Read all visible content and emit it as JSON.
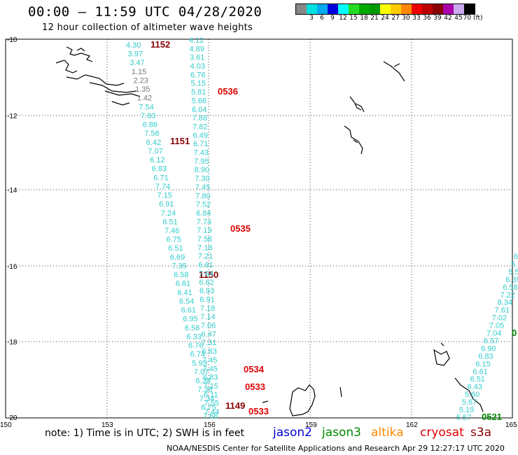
{
  "header": {
    "title": "00:00 – 11:59 UTC 04/28/2020",
    "subtitle": "12 hour collection of altimeter wave heights"
  },
  "colorbar": {
    "colors": [
      "#888888",
      "#00e0e0",
      "#00aaee",
      "#0000dd",
      "#00ffff",
      "#22dd22",
      "#00aa00",
      "#009900",
      "#ffff00",
      "#ffcc00",
      "#ff8800",
      "#ee0000",
      "#bb0000",
      "#880000",
      "#aa00aa",
      "#ccaaee",
      "#000000"
    ],
    "tick_labels": [
      "3",
      "6",
      "9",
      "12",
      "15",
      "18",
      "21",
      "24",
      "27",
      "30",
      "33",
      "36",
      "39",
      "42",
      "45",
      "70 (ft)"
    ]
  },
  "axes": {
    "lat_labels": [
      "-10",
      "-12",
      "-14",
      "-16",
      "-18",
      "-20"
    ],
    "lon_labels": [
      "150",
      "153",
      "156",
      "159",
      "162",
      "165"
    ]
  },
  "tracks": {
    "left_track_values": [
      "4.30",
      "3.97",
      "3.47",
      "1.15",
      "2.23",
      "1.35",
      "1.42",
      "7.54",
      "7.83",
      "6.86",
      "7.56",
      "6.42",
      "7.07",
      "6.12",
      "6.83",
      "6.71",
      "7.74",
      "7.15",
      "6.91",
      "7.24",
      "6.51",
      "7.46",
      "6.75",
      "6.51",
      "6.69",
      "7.35",
      "6.58",
      "6.81",
      "6.41",
      "6.54",
      "6.61",
      "6.95",
      "6.58",
      "6.33",
      "6.76",
      "6.74",
      "5.93",
      "7.07",
      "6.38",
      "7.38",
      "7.34",
      "6.75",
      "7.66"
    ],
    "left_track_colors": [
      "#33cccc",
      "#33cccc",
      "#33cccc",
      "#777777",
      "#777777",
      "#777777",
      "#777777",
      "#33cccc",
      "#33cccc",
      "#33cccc",
      "#33cccc",
      "#33cccc",
      "#33cccc",
      "#33cccc",
      "#33cccc",
      "#33cccc",
      "#33cccc",
      "#33cccc",
      "#33cccc",
      "#33cccc",
      "#33cccc",
      "#33cccc",
      "#33cccc",
      "#33cccc",
      "#33cccc",
      "#33cccc",
      "#33cccc",
      "#33cccc",
      "#33cccc",
      "#33cccc",
      "#33cccc",
      "#33cccc",
      "#33cccc",
      "#33cccc",
      "#33cccc",
      "#33cccc",
      "#33cccc",
      "#33cccc",
      "#33cccc",
      "#33cccc",
      "#33cccc",
      "#33cccc",
      "#33cccc"
    ],
    "right_track_values": [
      "4.12",
      "4.89",
      "3.61",
      "4.03",
      "6.76",
      "5.15",
      "5.81",
      "5.66",
      "6.04",
      "7.88",
      "7.82",
      "6.49",
      "6.71",
      "7.43",
      "7.95",
      "8.90",
      "7.30",
      "7.45",
      "7.80",
      "7.52",
      "6.84",
      "7.74",
      "7.19",
      "7.58",
      "7.18",
      "7.21",
      "6.61",
      "7.64",
      "6.62",
      "6.93",
      "6.91",
      "7.18",
      "7.14",
      "7.06",
      "6.47",
      "7.31",
      "6.83",
      "7.45",
      "7.45",
      "6.83",
      "7.15",
      "6.11",
      "7.55",
      "7.44"
    ],
    "east_track_values": [
      "6",
      "5.",
      "5.5",
      "6.39",
      "6.58",
      "7.22",
      "8.34",
      "7.61",
      "7.02",
      "7.05",
      "7.04",
      "6.57",
      "6.90",
      "6.83",
      "6.15",
      "6.61",
      "6.51",
      "6.43",
      "5.60",
      "5.67",
      "5.19",
      "5.57"
    ],
    "time_labels": [
      {
        "text": "1152",
        "color": "#880000"
      },
      {
        "text": "0536",
        "color": "#dd0000"
      },
      {
        "text": "1151",
        "color": "#880000"
      },
      {
        "text": "0535",
        "color": "#dd0000"
      },
      {
        "text": "1150",
        "color": "#880000"
      },
      {
        "text": "0534",
        "color": "#dd0000"
      },
      {
        "text": "0533",
        "color": "#dd0000"
      },
      {
        "text": "1149",
        "color": "#880000"
      },
      {
        "text": "0533",
        "color": "#dd0000"
      },
      {
        "text": "0",
        "color": "#008800"
      },
      {
        "text": "0521",
        "color": "#008800"
      }
    ]
  },
  "footer": {
    "note": "note:  1) Time is in UTC;  2) SWH is in feet",
    "legend": [
      {
        "name": "jason2",
        "color": "#0000dd"
      },
      {
        "name": "jason3",
        "color": "#008800"
      },
      {
        "name": "altika",
        "color": "#ff8800"
      },
      {
        "name": "cryosat",
        "color": "#dd0000"
      },
      {
        "name": "s3a",
        "color": "#880000"
      }
    ],
    "credit": "NOAA/NESDIS Center for Satellite Applications and Research    Apr 29 12:27:17 UTC 2020"
  }
}
